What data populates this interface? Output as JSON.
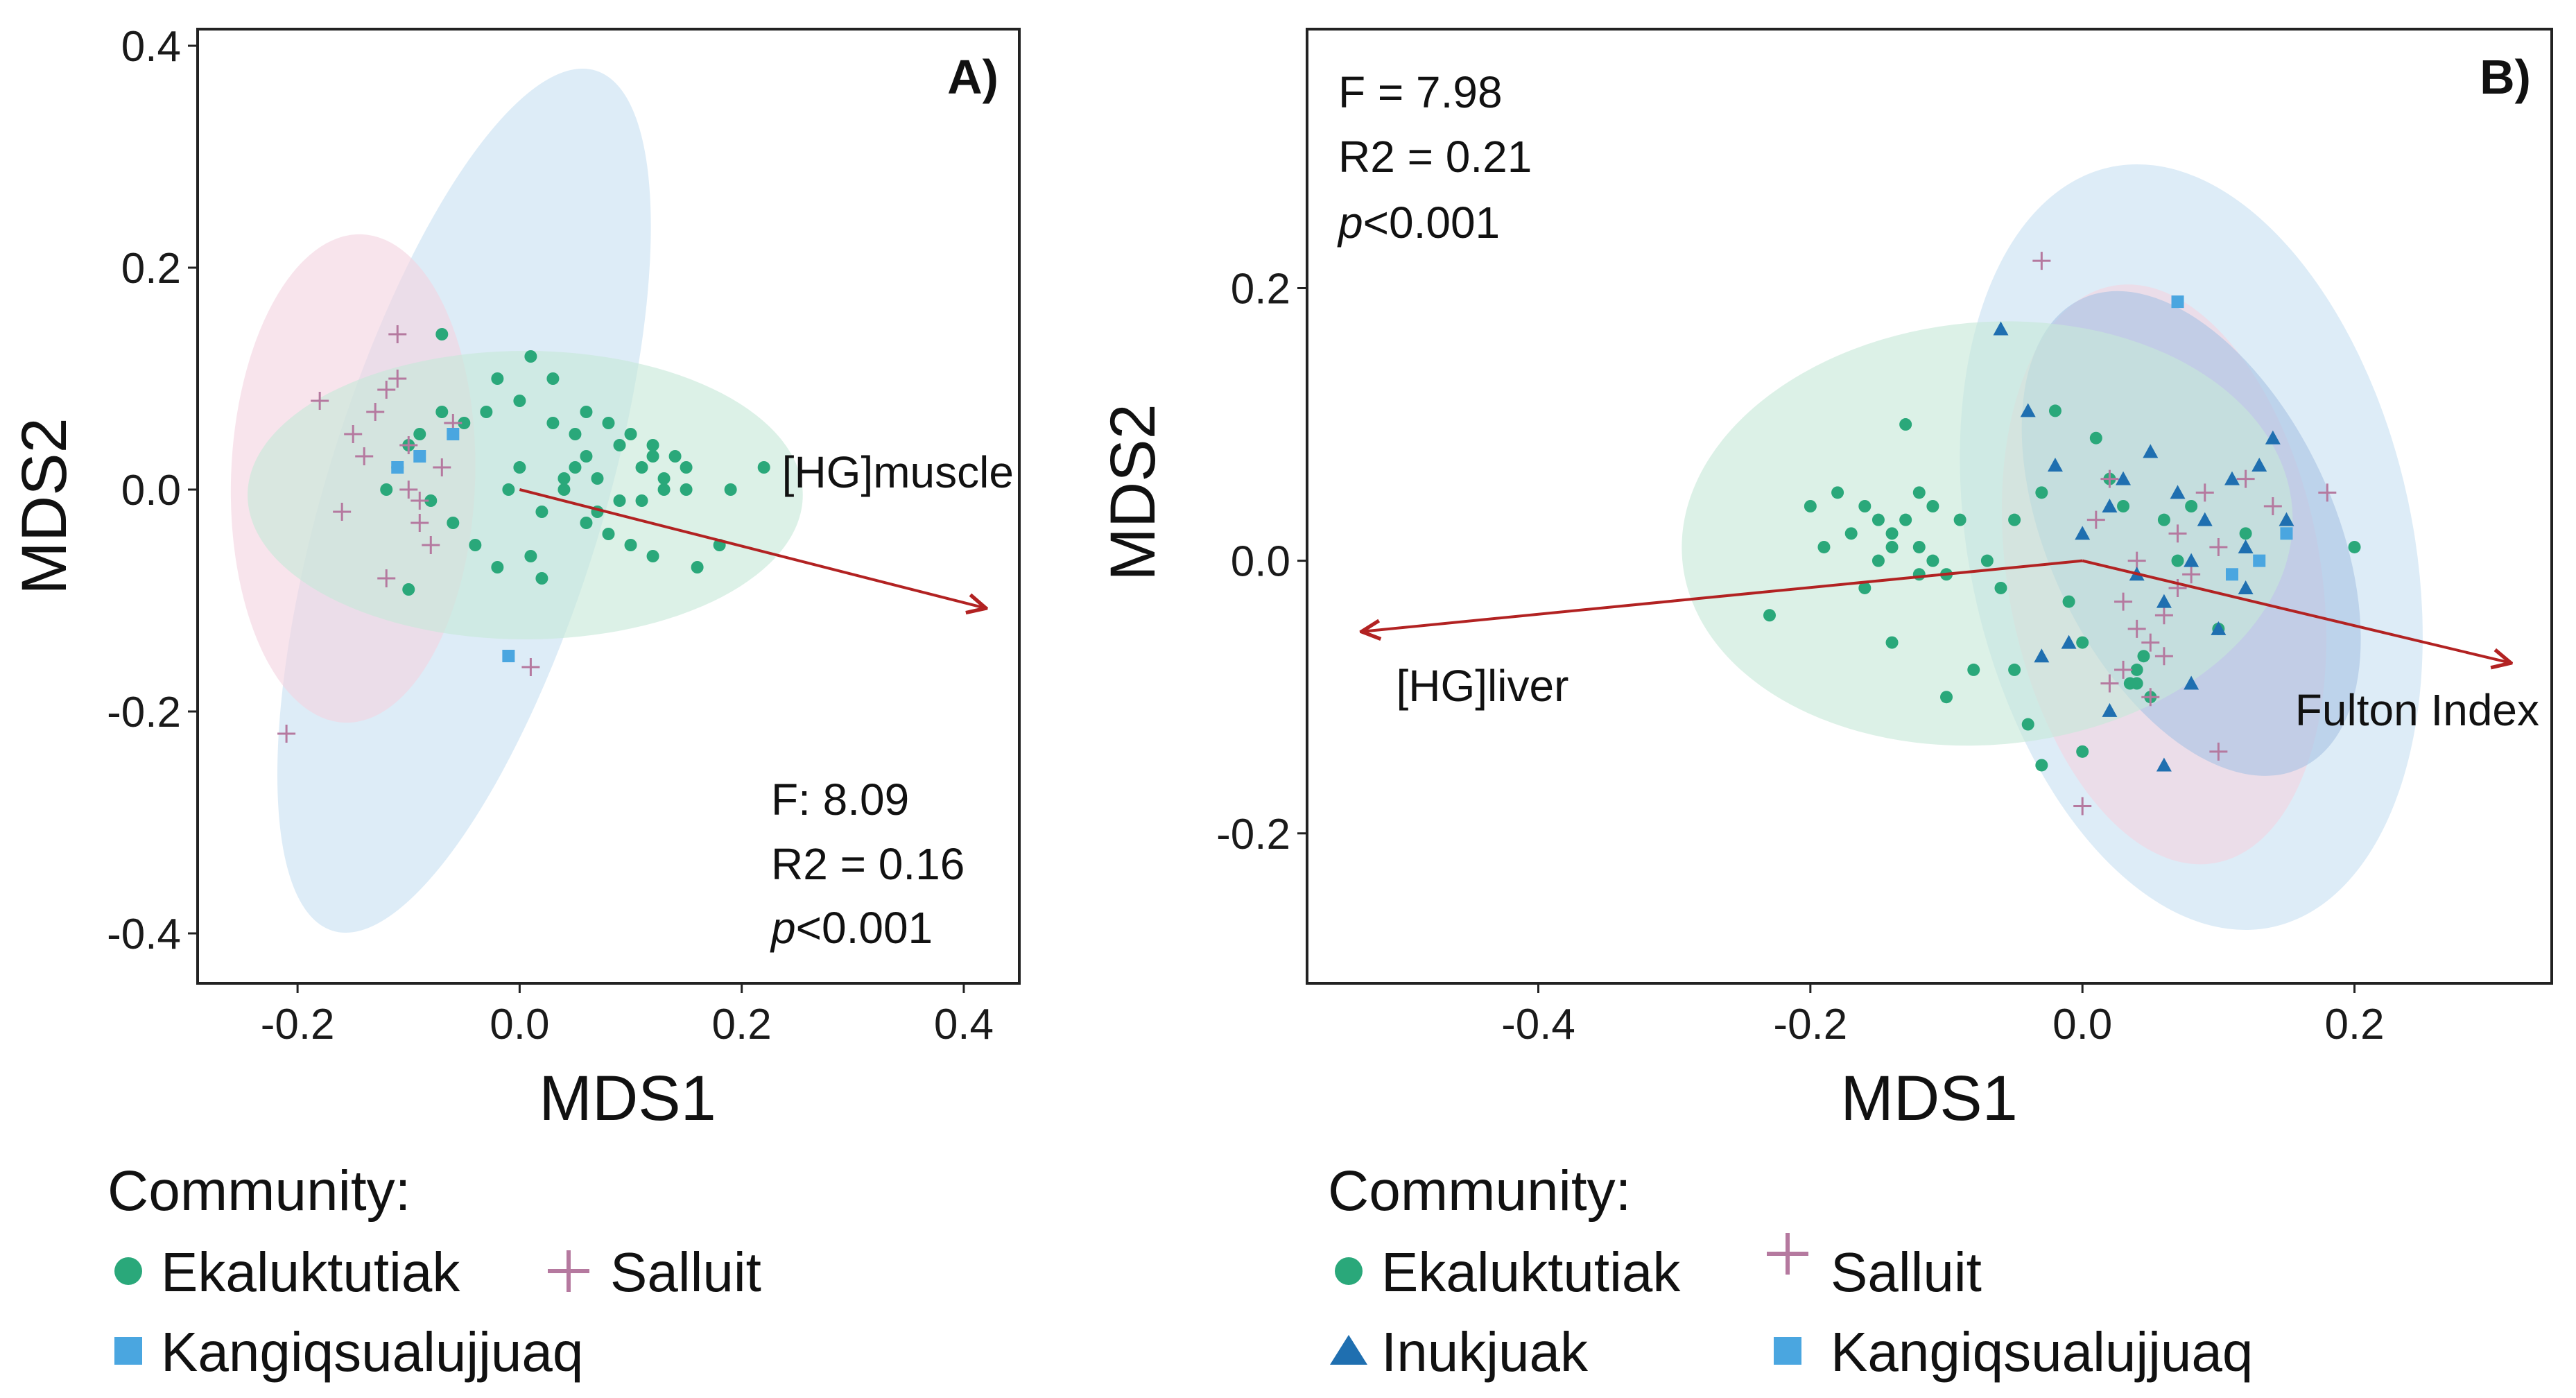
{
  "colors": {
    "ekaluktutiak": "#2aa87a",
    "salluit": "#b5799f",
    "kangiqsualujjuaq": "#4aa6e0",
    "inukjuak": "#1f6fb0",
    "ellipse_ekaluktutiak": "#c6e8d9",
    "ellipse_salluit": "#f3d3e1",
    "ellipse_kangiqsualujjuaq": "#c8e1f2",
    "ellipse_inukjuak": "#a9c3e4",
    "vector": "#b22222",
    "axis": "#222222"
  },
  "legend_icons": {
    "Ekaluktutiak": "circle-marker",
    "Salluit": "plus-marker",
    "Kangiqsualujjuaq": "square-marker",
    "Inukjuak": "triangle-marker"
  },
  "chart_data": [
    {
      "type": "scatter",
      "panel": "A)",
      "xlabel": "MDS1",
      "ylabel": "MDS2",
      "xlim": [
        -0.29,
        0.45
      ],
      "ylim": [
        -0.445,
        0.415
      ],
      "xticks": [
        -0.2,
        0.0,
        0.2,
        0.4
      ],
      "xtick_labels": [
        "-0.2",
        "0.0",
        "0.2",
        "0.4"
      ],
      "yticks": [
        -0.4,
        -0.2,
        0.0,
        0.2,
        0.4
      ],
      "ytick_labels": [
        "-0.4",
        "-0.2",
        "0.0",
        "0.2",
        "0.4"
      ],
      "stats": [
        "F: 8.09",
        "R2 = 0.16",
        "<0.001"
      ],
      "p_symbol": "p",
      "vectors": [
        {
          "label": "[HG]muscle",
          "x": 0.42,
          "y": -0.107
        }
      ],
      "ellipses": [
        {
          "group": "Kangiqsualujjuaq",
          "cx": -0.05,
          "cy": -0.01,
          "rx": 0.405,
          "ry": 0.125,
          "angle": -73
        },
        {
          "group": "Salluit",
          "cx": -0.15,
          "cy": 0.01,
          "rx": 0.22,
          "ry": 0.11,
          "angle": -88
        },
        {
          "group": "Ekaluktutiak",
          "cx": 0.005,
          "cy": -0.005,
          "rx": 0.25,
          "ry": 0.13,
          "angle": 0
        }
      ],
      "series": [
        {
          "name": "Ekaluktutiak",
          "marker": "circle",
          "x": [
            -0.07,
            0.01,
            0.03,
            0.06,
            0.08,
            0.1,
            0.12,
            0.14,
            0.11,
            0.13,
            0.15,
            0.09,
            0.07,
            0.05,
            0.04,
            0.02,
            0.06,
            0.08,
            0.1,
            0.12,
            0.16,
            0.18,
            0.22,
            0.19,
            0.13,
            0.11,
            0.09,
            0.05,
            0.03,
            0.0,
            -0.02,
            -0.03,
            -0.05,
            -0.07,
            -0.09,
            -0.1,
            -0.11,
            -0.12,
            -0.08,
            -0.06,
            -0.04,
            -0.02,
            0.01,
            0.02,
            0.07,
            0.15,
            0.12,
            0.04,
            -0.01,
            0.06,
            0.0,
            -0.1
          ],
          "y": [
            0.14,
            0.12,
            0.1,
            0.07,
            0.06,
            0.05,
            0.04,
            0.03,
            0.02,
            0.01,
            0.0,
            -0.01,
            0.01,
            0.02,
            0.0,
            -0.02,
            -0.03,
            -0.04,
            -0.05,
            -0.06,
            -0.07,
            -0.05,
            0.02,
            0.0,
            0.0,
            -0.01,
            0.04,
            0.05,
            0.06,
            0.08,
            0.1,
            0.07,
            0.06,
            0.07,
            0.05,
            0.04,
            0.02,
            0.0,
            -0.01,
            -0.03,
            -0.05,
            -0.07,
            -0.06,
            -0.08,
            -0.02,
            0.02,
            0.03,
            0.01,
            0.0,
            0.03,
            0.02,
            -0.09
          ]
        },
        {
          "name": "Salluit",
          "marker": "plus",
          "x": [
            -0.21,
            -0.18,
            -0.16,
            -0.15,
            -0.13,
            -0.12,
            -0.11,
            -0.11,
            -0.1,
            -0.1,
            -0.09,
            -0.08,
            -0.07,
            -0.06,
            -0.12,
            -0.14,
            -0.09,
            0.01
          ],
          "y": [
            -0.22,
            0.08,
            -0.02,
            0.05,
            0.07,
            0.09,
            0.14,
            0.1,
            0.04,
            0.0,
            -0.03,
            -0.05,
            0.02,
            0.06,
            -0.08,
            0.03,
            -0.01,
            -0.16
          ]
        },
        {
          "name": "Kangiqsualujjuaq",
          "marker": "square",
          "x": [
            -0.11,
            -0.09,
            -0.06,
            -0.01
          ],
          "y": [
            0.02,
            0.03,
            0.05,
            -0.15
          ]
        }
      ]
    },
    {
      "type": "scatter",
      "panel": "B)",
      "xlabel": "MDS1",
      "ylabel": "MDS2",
      "xlim": [
        -0.57,
        0.345
      ],
      "ylim": [
        -0.31,
        0.39
      ],
      "xticks": [
        -0.4,
        -0.2,
        0.0,
        0.2
      ],
      "xtick_labels": [
        "-0.4",
        "-0.2",
        "0.0",
        "0.2"
      ],
      "yticks": [
        -0.2,
        0.0,
        0.2
      ],
      "ytick_labels": [
        "-0.2",
        "0.0",
        "0.2"
      ],
      "stats": [
        "F = 7.98",
        "R2 = 0.21",
        "<0.001"
      ],
      "p_symbol": "p",
      "vectors": [
        {
          "label": "[HG]liver",
          "x": -0.53,
          "y": -0.052
        },
        {
          "label": "Fulton Index",
          "x": 0.315,
          "y": -0.075
        }
      ],
      "ellipses": [
        {
          "group": "Kangiqsualujjuaq",
          "cx": 0.08,
          "cy": 0.01,
          "rx": 0.163,
          "ry": 0.285,
          "angle": -12
        },
        {
          "group": "Salluit",
          "cx": 0.06,
          "cy": -0.01,
          "rx": 0.115,
          "ry": 0.215,
          "angle": -10
        },
        {
          "group": "Inukjuak",
          "cx": 0.08,
          "cy": 0.02,
          "rx": 0.105,
          "ry": 0.19,
          "angle": -25
        },
        {
          "group": "Ekaluktutiak",
          "cx": -0.07,
          "cy": 0.02,
          "rx": 0.225,
          "ry": 0.155,
          "angle": -5
        }
      ],
      "series": [
        {
          "name": "Ekaluktutiak",
          "marker": "circle",
          "x": [
            -0.23,
            -0.2,
            -0.19,
            -0.18,
            -0.17,
            -0.16,
            -0.15,
            -0.15,
            -0.14,
            -0.14,
            -0.13,
            -0.13,
            -0.12,
            -0.12,
            -0.11,
            -0.11,
            -0.1,
            -0.1,
            -0.09,
            -0.08,
            -0.07,
            -0.06,
            -0.05,
            -0.05,
            -0.04,
            -0.03,
            -0.02,
            -0.01,
            0.0,
            0.01,
            0.02,
            0.03,
            0.04,
            0.05,
            0.06,
            0.07,
            0.08,
            0.1,
            0.12,
            0.2,
            -0.16,
            -0.14,
            -0.12,
            -0.03,
            0.0,
            0.04,
            0.045,
            0.035
          ],
          "y": [
            -0.04,
            0.04,
            0.01,
            0.05,
            0.02,
            0.04,
            0.03,
            0.0,
            0.01,
            -0.06,
            0.03,
            0.1,
            0.05,
            -0.01,
            0.04,
            0.0,
            -0.01,
            -0.1,
            0.03,
            -0.08,
            0.0,
            -0.02,
            -0.08,
            0.03,
            -0.12,
            0.05,
            0.11,
            -0.03,
            -0.06,
            0.09,
            0.06,
            0.04,
            -0.09,
            -0.1,
            0.03,
            0.0,
            0.04,
            -0.05,
            0.02,
            0.01,
            -0.02,
            0.02,
            0.01,
            -0.15,
            -0.14,
            -0.08,
            -0.07,
            -0.09
          ]
        },
        {
          "name": "Salluit",
          "marker": "plus",
          "x": [
            -0.03,
            0.02,
            0.03,
            0.04,
            0.05,
            0.06,
            0.07,
            0.08,
            0.09,
            0.1,
            0.12,
            0.14,
            0.18,
            0.05,
            0.06,
            0.01,
            0.02,
            0.04,
            0.07,
            0.1,
            0.0,
            0.03
          ],
          "y": [
            0.22,
            0.06,
            -0.03,
            -0.05,
            -0.06,
            -0.07,
            0.02,
            -0.01,
            0.05,
            -0.14,
            0.06,
            0.04,
            0.05,
            -0.1,
            -0.04,
            0.03,
            -0.09,
            0.0,
            -0.02,
            0.01,
            -0.18,
            -0.08
          ]
        },
        {
          "name": "Inukjuak",
          "marker": "triangle",
          "x": [
            -0.06,
            -0.04,
            -0.02,
            0.0,
            0.02,
            0.03,
            0.04,
            0.05,
            0.06,
            0.07,
            0.08,
            0.09,
            0.1,
            0.11,
            0.12,
            0.13,
            0.14,
            0.15,
            -0.01,
            0.06,
            0.08,
            0.12,
            0.02,
            -0.03
          ],
          "y": [
            0.17,
            0.11,
            0.07,
            0.02,
            0.04,
            0.06,
            -0.01,
            0.08,
            -0.03,
            0.05,
            0.0,
            0.03,
            -0.05,
            0.06,
            -0.02,
            0.07,
            0.09,
            0.03,
            -0.06,
            -0.15,
            -0.09,
            0.01,
            -0.11,
            -0.07
          ]
        },
        {
          "name": "Kangiqsualujjuaq",
          "marker": "square",
          "x": [
            0.07,
            0.11,
            0.13,
            0.15
          ],
          "y": [
            0.19,
            -0.01,
            0.0,
            0.02
          ]
        }
      ]
    }
  ],
  "legends": [
    {
      "title": "Community:",
      "items": [
        "Ekaluktutiak",
        "Salluit",
        "Kangiqsualujjuaq"
      ]
    },
    {
      "title": "Community:",
      "items": [
        "Ekaluktutiak",
        "Salluit",
        "Inukjuak",
        "Kangiqsualujjuaq"
      ]
    }
  ]
}
